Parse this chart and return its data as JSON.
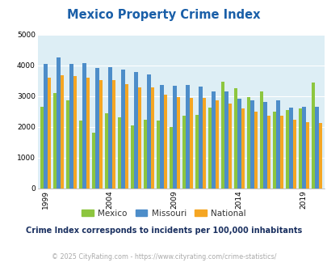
{
  "title": "Mexico Property Crime Index",
  "subtitle": "Crime Index corresponds to incidents per 100,000 inhabitants",
  "copyright": "© 2025 CityRating.com - https://www.cityrating.com/crime-statistics/",
  "years": [
    1999,
    2000,
    2001,
    2002,
    2003,
    2004,
    2005,
    2006,
    2007,
    2008,
    2009,
    2010,
    2011,
    2012,
    2013,
    2014,
    2015,
    2016,
    2017,
    2018,
    2019,
    2020
  ],
  "mexico": [
    2650,
    3100,
    2850,
    2200,
    1800,
    2450,
    2310,
    2050,
    2220,
    2200,
    2000,
    2370,
    2380,
    2620,
    3480,
    3260,
    2960,
    3140,
    2500,
    2550,
    2590,
    3440
  ],
  "missouri": [
    4060,
    4260,
    4060,
    4080,
    3920,
    3940,
    3860,
    3780,
    3700,
    3360,
    3340,
    3360,
    3300,
    3150,
    3160,
    2920,
    2870,
    2820,
    2850,
    2630,
    2640,
    2640
  ],
  "national": [
    3600,
    3680,
    3660,
    3610,
    3530,
    3530,
    3380,
    3280,
    3290,
    3040,
    2980,
    2950,
    2950,
    2870,
    2750,
    2590,
    2500,
    2360,
    2360,
    2220,
    2150,
    2130
  ],
  "mexico_color": "#8dc63f",
  "missouri_color": "#4d8dc9",
  "national_color": "#f5a623",
  "plot_bg": "#ddeef5",
  "title_color": "#1a5fa8",
  "ylim": [
    0,
    5000
  ],
  "yticks": [
    0,
    1000,
    2000,
    3000,
    4000,
    5000
  ],
  "xtick_years": [
    1999,
    2004,
    2009,
    2014,
    2019
  ]
}
